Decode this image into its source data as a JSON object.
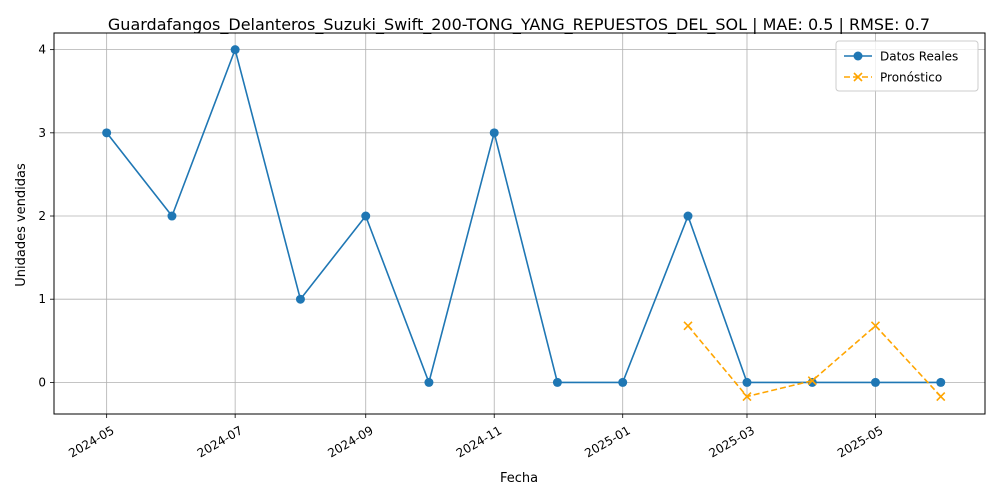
{
  "chart_data": {
    "type": "line",
    "title": "Guardafangos_Delanteros_Suzuki_Swift_200-TONG_YANG_REPUESTOS_DEL_SOL | MAE: 0.5 | RMSE: 0.7",
    "xlabel": "Fecha",
    "ylabel": "Unidades vendidas",
    "ylim": [
      -0.38,
      4.2
    ],
    "x_range": [
      "2024-04-06",
      "2025-06-22"
    ],
    "x_ticks": [
      "2024-05",
      "2024-07",
      "2024-09",
      "2024-11",
      "2025-01",
      "2025-03",
      "2025-05"
    ],
    "x_tick_dates": [
      "2024-05-01",
      "2024-07-01",
      "2024-09-01",
      "2024-11-01",
      "2025-01-01",
      "2025-03-01",
      "2025-05-01"
    ],
    "y_ticks": [
      0,
      1,
      2,
      3,
      4
    ],
    "grid": true,
    "legend_position": "top-right",
    "series": [
      {
        "name": "Datos Reales",
        "color": "#1f77b4",
        "style": "solid",
        "marker": "circle",
        "x": [
          "2024-05-01",
          "2024-06-01",
          "2024-07-01",
          "2024-08-01",
          "2024-09-01",
          "2024-10-01",
          "2024-11-01",
          "2024-12-01",
          "2025-01-01",
          "2025-02-01",
          "2025-03-01",
          "2025-04-01",
          "2025-05-01",
          "2025-06-01"
        ],
        "values": [
          3,
          2,
          4,
          1,
          2,
          0,
          3,
          0,
          0,
          2,
          0,
          0,
          0,
          0
        ]
      },
      {
        "name": "Pronóstico",
        "color": "#ffa500",
        "style": "dashed",
        "marker": "x",
        "x": [
          "2025-02-01",
          "2025-03-01",
          "2025-04-01",
          "2025-05-01",
          "2025-06-01"
        ],
        "values": [
          0.68,
          -0.17,
          0.02,
          0.68,
          -0.17
        ]
      }
    ]
  }
}
